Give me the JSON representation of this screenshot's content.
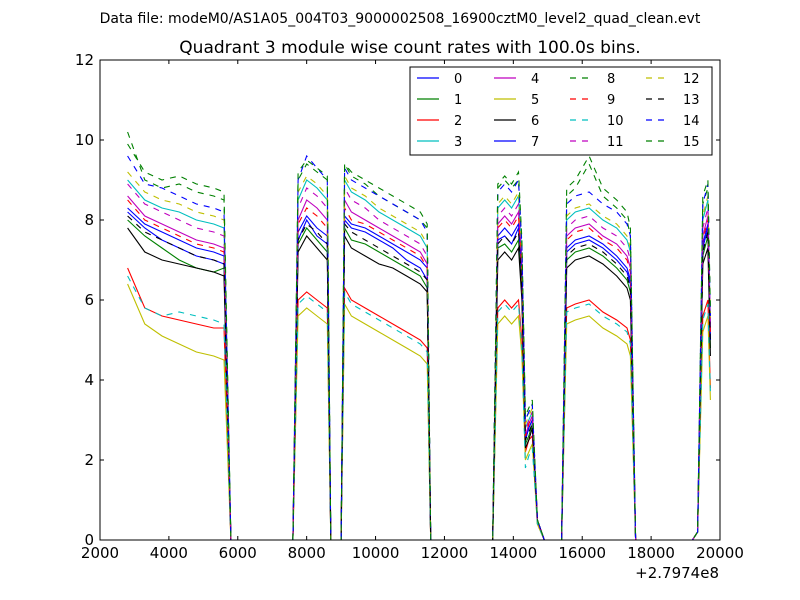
{
  "suptitle": "Data file: modeM0/AS1A05_004T03_9000002508_16900cztM0_level2_quad_clean.evt",
  "chart_data": {
    "type": "line",
    "title": "Quadrant 3 module wise count rates with 100.0s bins.",
    "xlabel": "",
    "ylabel": "",
    "x_offset_label": "+2.7974e8",
    "xlim": [
      2000,
      20000
    ],
    "ylim": [
      0,
      12
    ],
    "xticks": [
      2000,
      4000,
      6000,
      8000,
      10000,
      12000,
      14000,
      16000,
      18000,
      20000
    ],
    "yticks": [
      0,
      2,
      4,
      6,
      8,
      10,
      12
    ],
    "grid": false,
    "legend_position": "top-right",
    "x": [
      2800,
      3300,
      3800,
      4300,
      4800,
      5300,
      5600,
      5800,
      6000,
      7000,
      7600,
      7750,
      8000,
      8300,
      8600,
      8700,
      9000,
      9100,
      9300,
      9700,
      10100,
      10500,
      10900,
      11300,
      11500,
      11600,
      13400,
      13550,
      13750,
      13950,
      14150,
      14250,
      14350,
      14450,
      14550,
      14700,
      14900,
      15000,
      15400,
      15550,
      15800,
      16200,
      16600,
      17000,
      17300,
      17400,
      17550,
      19200,
      19350,
      19500,
      19650,
      19720
    ],
    "series": [
      {
        "name": "0",
        "color": "#0000ff",
        "dash": "solid",
        "values": [
          8.2,
          7.8,
          7.5,
          7.3,
          7.1,
          7.0,
          6.9,
          0,
          0,
          0,
          0,
          7.5,
          8.0,
          7.6,
          7.4,
          0,
          0,
          8.0,
          7.8,
          7.7,
          7.5,
          7.3,
          7.0,
          6.8,
          6.5,
          0,
          0,
          7.5,
          7.6,
          7.4,
          7.8,
          6.5,
          2.5,
          2.8,
          3.0,
          0.5,
          0,
          0,
          0,
          7.2,
          7.4,
          7.5,
          7.3,
          7.0,
          6.7,
          6.4,
          0,
          0,
          0.2,
          7.3,
          7.8,
          5.0
        ]
      },
      {
        "name": "1",
        "color": "#008000",
        "dash": "solid",
        "values": [
          8.0,
          7.6,
          7.3,
          7.0,
          6.8,
          6.7,
          6.8,
          0,
          0,
          0,
          0,
          7.4,
          7.8,
          7.5,
          7.2,
          0,
          0,
          7.8,
          7.5,
          7.4,
          7.2,
          7.0,
          6.8,
          6.6,
          6.3,
          0,
          0,
          7.3,
          7.4,
          7.2,
          7.5,
          6.2,
          2.4,
          2.6,
          2.9,
          0.5,
          0,
          0,
          0,
          7.0,
          7.2,
          7.3,
          7.1,
          6.8,
          6.5,
          6.2,
          0,
          0,
          0.2,
          7.1,
          7.6,
          4.8
        ]
      },
      {
        "name": "2",
        "color": "#ff0000",
        "dash": "solid",
        "values": [
          6.8,
          5.8,
          5.6,
          5.5,
          5.4,
          5.3,
          5.3,
          0,
          0,
          0,
          0,
          6.0,
          6.2,
          6.0,
          5.8,
          0,
          0,
          6.3,
          6.0,
          5.8,
          5.6,
          5.4,
          5.2,
          5.0,
          4.8,
          0,
          0,
          5.8,
          6.0,
          5.8,
          6.0,
          5.0,
          2.2,
          2.5,
          2.6,
          0.4,
          0,
          0,
          0,
          5.8,
          5.9,
          6.0,
          5.7,
          5.5,
          5.3,
          5.0,
          0,
          0,
          0.2,
          5.6,
          6.0,
          3.8
        ]
      },
      {
        "name": "3",
        "color": "#00bfbf",
        "dash": "solid",
        "values": [
          9.0,
          8.5,
          8.3,
          8.2,
          8.0,
          7.9,
          7.8,
          0,
          0,
          0,
          0,
          8.5,
          9.0,
          8.8,
          8.5,
          0,
          0,
          9.0,
          8.7,
          8.5,
          8.2,
          8.0,
          7.8,
          7.6,
          7.3,
          0,
          0,
          8.3,
          8.5,
          8.3,
          8.6,
          7.0,
          2.8,
          3.0,
          3.2,
          0.5,
          0,
          0,
          0,
          8.0,
          8.2,
          8.3,
          8.0,
          7.8,
          7.5,
          7.2,
          0,
          0,
          0.2,
          8.0,
          8.5,
          5.4
        ]
      },
      {
        "name": "4",
        "color": "#bf00bf",
        "dash": "solid",
        "values": [
          8.6,
          8.1,
          7.9,
          7.7,
          7.5,
          7.4,
          7.3,
          0,
          0,
          0,
          0,
          8.0,
          8.5,
          8.3,
          8.0,
          0,
          0,
          8.5,
          8.2,
          8.0,
          7.8,
          7.6,
          7.4,
          7.2,
          6.9,
          0,
          0,
          7.9,
          8.1,
          7.9,
          8.2,
          6.8,
          2.6,
          2.9,
          3.1,
          0.5,
          0,
          0,
          0,
          7.6,
          7.8,
          7.9,
          7.6,
          7.4,
          7.1,
          6.8,
          0,
          0,
          0.2,
          7.6,
          8.1,
          5.2
        ]
      },
      {
        "name": "5",
        "color": "#bfbf00",
        "dash": "solid",
        "values": [
          6.4,
          5.4,
          5.1,
          4.9,
          4.7,
          4.6,
          4.5,
          0,
          0,
          0,
          0,
          5.6,
          5.8,
          5.6,
          5.4,
          0,
          0,
          5.9,
          5.6,
          5.4,
          5.2,
          5.0,
          4.8,
          4.6,
          4.4,
          0,
          0,
          5.4,
          5.6,
          5.4,
          5.6,
          4.6,
          2.0,
          2.2,
          2.4,
          0.4,
          0,
          0,
          0,
          5.4,
          5.5,
          5.6,
          5.3,
          5.1,
          4.9,
          4.6,
          0,
          0,
          0.2,
          5.2,
          5.6,
          3.5
        ]
      },
      {
        "name": "6",
        "color": "#000000",
        "dash": "solid",
        "values": [
          7.8,
          7.2,
          7.0,
          6.9,
          6.8,
          6.7,
          6.6,
          0,
          0,
          0,
          0,
          7.2,
          7.6,
          7.3,
          7.0,
          0,
          0,
          7.6,
          7.3,
          7.1,
          6.9,
          6.8,
          6.6,
          6.4,
          6.2,
          0,
          0,
          7.0,
          7.2,
          7.0,
          7.3,
          6.0,
          2.3,
          2.5,
          2.8,
          0.5,
          0,
          0,
          0,
          6.8,
          7.0,
          7.1,
          6.9,
          6.6,
          6.3,
          6.0,
          0,
          0,
          0.2,
          6.9,
          7.3,
          4.6
        ]
      },
      {
        "name": "7",
        "color": "#0000ff",
        "dash": "solid",
        "values": [
          8.3,
          7.9,
          7.7,
          7.5,
          7.3,
          7.2,
          7.1,
          0,
          0,
          0,
          0,
          7.7,
          8.1,
          7.8,
          7.6,
          0,
          0,
          8.1,
          7.9,
          7.8,
          7.6,
          7.4,
          7.2,
          7.0,
          6.8,
          0,
          0,
          7.6,
          7.8,
          7.6,
          7.9,
          6.6,
          2.5,
          2.8,
          3.0,
          0.5,
          0,
          0,
          0,
          7.3,
          7.5,
          7.6,
          7.4,
          7.1,
          6.8,
          6.5,
          0,
          0,
          0.2,
          7.4,
          7.9,
          5.0
        ]
      },
      {
        "name": "8",
        "color": "#008000",
        "dash": "dashed",
        "values": [
          10.2,
          9.0,
          8.8,
          8.9,
          8.7,
          8.6,
          8.5,
          0,
          0,
          0,
          0,
          9.0,
          9.4,
          9.2,
          9.0,
          0,
          0,
          9.4,
          9.1,
          8.9,
          8.6,
          8.4,
          8.2,
          8.0,
          7.8,
          0,
          0,
          8.8,
          9.0,
          8.8,
          9.0,
          7.4,
          3.0,
          3.2,
          3.4,
          0.5,
          0,
          0,
          0,
          8.6,
          8.8,
          9.4,
          8.6,
          8.3,
          8.0,
          7.6,
          0,
          0,
          0.2,
          8.4,
          8.8,
          5.6
        ]
      },
      {
        "name": "9",
        "color": "#ff0000",
        "dash": "dashed",
        "values": [
          8.5,
          8.0,
          7.8,
          7.6,
          7.4,
          7.3,
          7.2,
          0,
          0,
          0,
          0,
          7.9,
          8.3,
          8.1,
          7.8,
          0,
          0,
          8.3,
          8.0,
          7.9,
          7.7,
          7.5,
          7.3,
          7.1,
          6.8,
          0,
          0,
          7.8,
          8.0,
          7.8,
          8.1,
          6.7,
          2.6,
          2.9,
          3.1,
          0.5,
          0,
          0,
          0,
          7.5,
          7.7,
          7.8,
          7.5,
          7.3,
          7.0,
          6.7,
          0,
          0,
          0.2,
          7.5,
          8.0,
          5.1
        ]
      },
      {
        "name": "10",
        "color": "#00bfbf",
        "dash": "dashed",
        "values": [
          6.6,
          5.8,
          5.6,
          5.7,
          5.6,
          5.5,
          5.4,
          0,
          0,
          0,
          0,
          5.9,
          6.1,
          5.9,
          5.7,
          0,
          0,
          6.2,
          5.9,
          5.7,
          5.5,
          5.3,
          5.1,
          4.9,
          4.7,
          0,
          0,
          5.7,
          5.9,
          5.7,
          5.9,
          4.8,
          1.8,
          2.1,
          2.3,
          0.4,
          0,
          0,
          0,
          5.7,
          5.8,
          5.9,
          5.6,
          5.4,
          5.2,
          4.9,
          0,
          0,
          0.2,
          5.5,
          5.9,
          3.7
        ]
      },
      {
        "name": "11",
        "color": "#bf00bf",
        "dash": "dashed",
        "values": [
          8.9,
          8.4,
          8.2,
          8.0,
          7.8,
          7.7,
          7.6,
          0,
          0,
          0,
          0,
          8.3,
          8.8,
          8.6,
          8.3,
          0,
          0,
          8.8,
          8.5,
          8.3,
          8.0,
          7.8,
          7.6,
          7.4,
          7.1,
          0,
          0,
          8.1,
          8.3,
          8.1,
          8.4,
          6.9,
          2.7,
          3.0,
          3.2,
          0.5,
          0,
          0,
          0,
          7.8,
          8.0,
          8.1,
          7.8,
          7.6,
          7.3,
          7.0,
          0,
          0,
          0.2,
          7.8,
          8.3,
          5.3
        ]
      },
      {
        "name": "12",
        "color": "#bfbf00",
        "dash": "dashed",
        "values": [
          9.2,
          8.7,
          8.5,
          8.4,
          8.2,
          8.1,
          8.0,
          0,
          0,
          0,
          0,
          8.7,
          9.1,
          8.9,
          8.6,
          0,
          0,
          9.1,
          8.8,
          8.6,
          8.3,
          8.1,
          7.9,
          7.7,
          7.4,
          0,
          0,
          8.4,
          8.6,
          8.4,
          8.7,
          7.1,
          2.9,
          3.1,
          3.3,
          0.5,
          0,
          0,
          0,
          8.1,
          8.3,
          8.4,
          8.1,
          7.9,
          7.6,
          7.3,
          0,
          0,
          0.2,
          8.1,
          8.6,
          5.5
        ]
      },
      {
        "name": "13",
        "color": "#000000",
        "dash": "dashed",
        "values": [
          8.1,
          7.7,
          7.5,
          7.3,
          7.1,
          7.0,
          6.9,
          0,
          0,
          0,
          0,
          7.5,
          7.9,
          7.7,
          7.4,
          0,
          0,
          7.9,
          7.7,
          7.5,
          7.3,
          7.1,
          6.9,
          6.7,
          6.5,
          0,
          0,
          7.4,
          7.6,
          7.4,
          7.7,
          6.4,
          2.5,
          2.7,
          2.9,
          0.5,
          0,
          0,
          0,
          7.1,
          7.3,
          7.4,
          7.2,
          6.9,
          6.6,
          6.3,
          0,
          0,
          0.2,
          7.2,
          7.7,
          4.9
        ]
      },
      {
        "name": "14",
        "color": "#0000ff",
        "dash": "dashed",
        "values": [
          9.6,
          8.9,
          8.8,
          8.6,
          8.4,
          8.3,
          8.2,
          0,
          0,
          0,
          0,
          9.0,
          9.6,
          9.3,
          9.0,
          0,
          0,
          9.3,
          9.0,
          8.8,
          8.6,
          8.4,
          8.2,
          8.0,
          7.7,
          0,
          0,
          8.7,
          8.9,
          8.7,
          9.0,
          7.3,
          3.0,
          3.2,
          3.4,
          0.5,
          0,
          0,
          0,
          8.4,
          8.6,
          8.7,
          8.4,
          8.2,
          7.9,
          7.6,
          0,
          0,
          0.2,
          8.4,
          8.9,
          5.6
        ]
      },
      {
        "name": "15",
        "color": "#008000",
        "dash": "dashed",
        "values": [
          9.9,
          9.2,
          9.0,
          9.1,
          8.9,
          8.8,
          8.7,
          0,
          0,
          0,
          0,
          9.2,
          9.5,
          9.3,
          9.1,
          0,
          0,
          9.4,
          9.2,
          9.0,
          8.8,
          8.6,
          8.4,
          8.2,
          7.9,
          0,
          0,
          8.9,
          9.1,
          8.9,
          9.2,
          7.5,
          3.1,
          3.3,
          3.5,
          0.5,
          0,
          0,
          0,
          8.8,
          9.0,
          9.6,
          8.8,
          8.5,
          8.2,
          7.8,
          0,
          0,
          0.2,
          8.6,
          9.0,
          5.7
        ]
      }
    ]
  }
}
